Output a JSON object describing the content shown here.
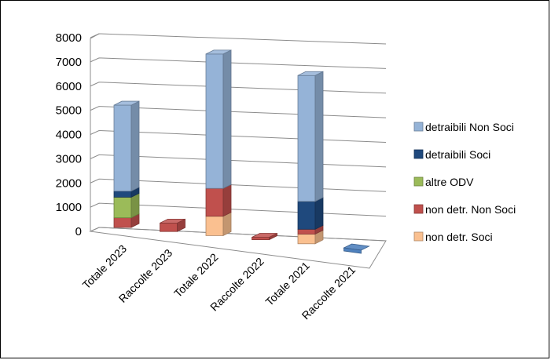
{
  "chart_data": {
    "type": "bar",
    "stacked": true,
    "three_d": true,
    "categories": [
      "Totale 2023",
      "Raccolte 2023",
      "Totale 2022",
      "Raccolte 2022",
      "Totale 2021",
      "Raccolte 2021"
    ],
    "series": [
      {
        "name": "non detr. Soci",
        "color": "#FAC090",
        "values": [
          0,
          0,
          800,
          0,
          400,
          0
        ]
      },
      {
        "name": "non detr. Non Soci",
        "color": "#C0504D",
        "values": [
          400,
          350,
          1150,
          100,
          200,
          0
        ]
      },
      {
        "name": "altre ODV",
        "color": "#9BBB59",
        "values": [
          850,
          0,
          0,
          0,
          0,
          0
        ]
      },
      {
        "name": "detraibili Soci",
        "color": "#1F497D",
        "values": [
          250,
          0,
          0,
          0,
          1150,
          0
        ]
      },
      {
        "name": "detraibili Non Soci",
        "color": "#95B3D7",
        "values": [
          3550,
          0,
          5550,
          0,
          5200,
          0
        ]
      }
    ],
    "y_ticks": [
      "0",
      "1000",
      "2000",
      "3000",
      "4000",
      "5000",
      "6000",
      "7000",
      "8000"
    ],
    "ylim": [
      0,
      8000
    ],
    "grid": true,
    "legend_position": "right",
    "legend_order": [
      "detraibili Non Soci",
      "detraibili Soci",
      "altre ODV",
      "non detr. Non Soci",
      "non detr. Soci"
    ]
  }
}
